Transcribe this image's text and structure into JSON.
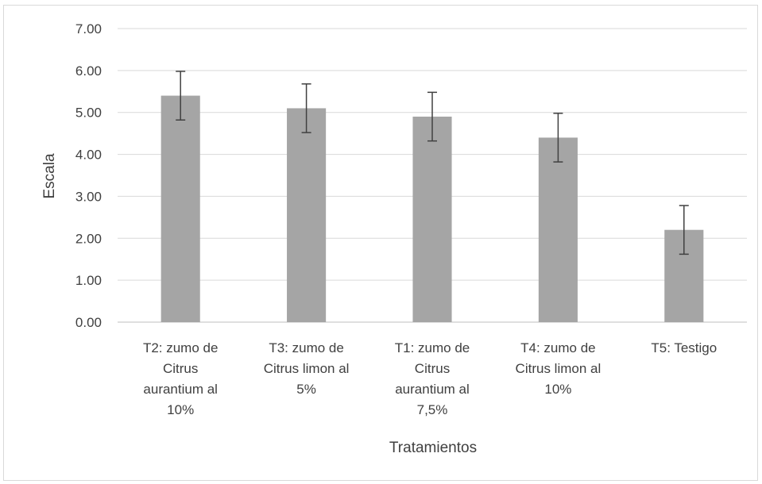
{
  "chart_data": {
    "type": "bar",
    "title": "",
    "xlabel": "Tratamientos",
    "ylabel": "Escala",
    "ylim": [
      0,
      7
    ],
    "yticks": [
      "0.00",
      "1.00",
      "2.00",
      "3.00",
      "4.00",
      "5.00",
      "6.00",
      "7.00"
    ],
    "grid": true,
    "bar_color": "#a5a5a5",
    "categories": [
      [
        "T2: zumo de",
        "Citrus",
        "aurantium al",
        "10%"
      ],
      [
        "T3: zumo de",
        "Citrus limon al",
        "5%"
      ],
      [
        "T1: zumo de",
        "Citrus",
        "aurantium al",
        "7,5%"
      ],
      [
        "T4: zumo de",
        "Citrus limon al",
        "10%"
      ],
      [
        "T5: Testigo"
      ]
    ],
    "values": [
      5.4,
      5.1,
      4.9,
      4.4,
      2.2
    ],
    "error": [
      0.58,
      0.58,
      0.58,
      0.58,
      0.58
    ]
  }
}
